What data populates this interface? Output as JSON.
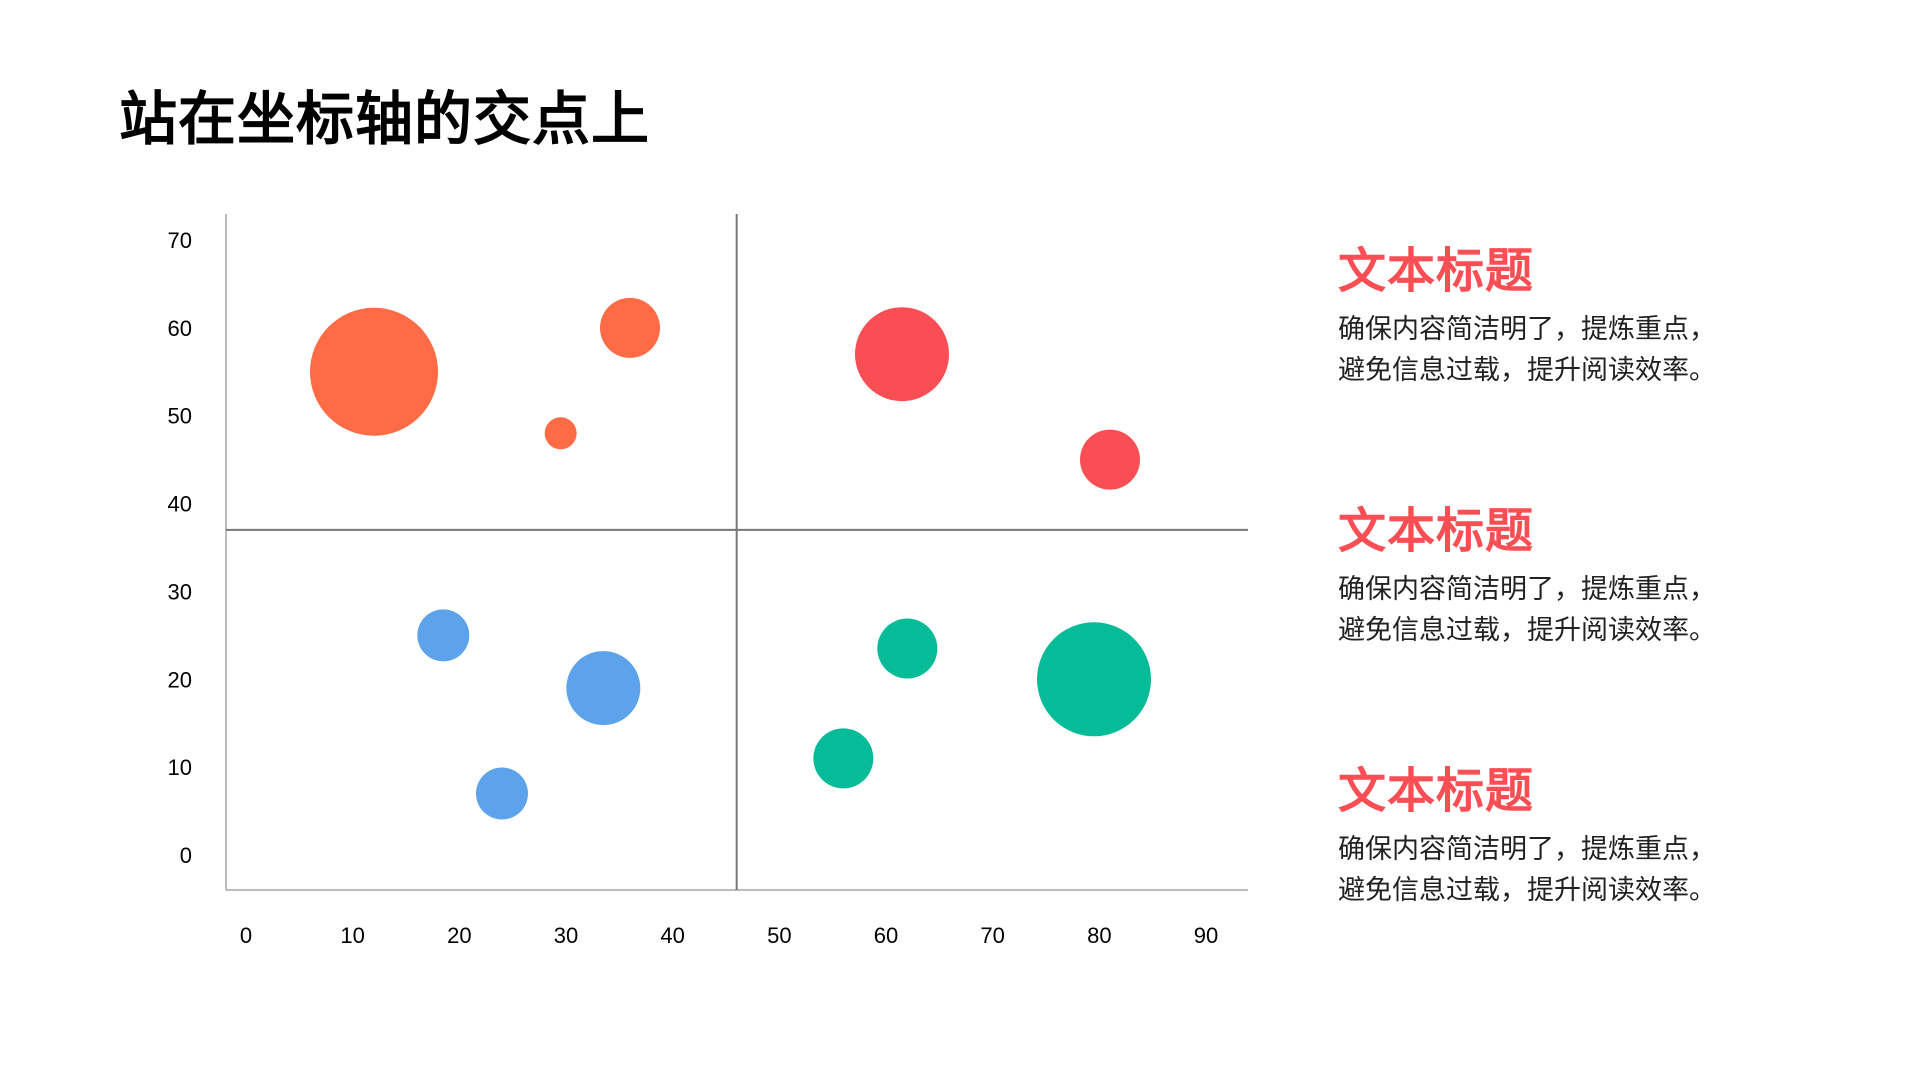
{
  "page": {
    "title": "站在坐标轴的交点上"
  },
  "chart_data": {
    "type": "scatter",
    "subtype": "bubble",
    "title": "",
    "xlabel": "",
    "ylabel": "",
    "xlim": [
      0,
      90
    ],
    "ylim": [
      0,
      70
    ],
    "x_ticks": [
      0,
      10,
      20,
      30,
      40,
      50,
      60,
      70,
      80,
      90
    ],
    "y_ticks": [
      0,
      10,
      20,
      30,
      40,
      50,
      60,
      70
    ],
    "grid": false,
    "legend": "none",
    "quadrant_divider": {
      "x": 46,
      "y": 37
    },
    "series": [
      {
        "color": "#FF6B45",
        "points": [
          {
            "x": 12,
            "y": 55,
            "size": 64
          },
          {
            "x": 36,
            "y": 60,
            "size": 30
          },
          {
            "x": 29.5,
            "y": 48,
            "size": 16
          }
        ]
      },
      {
        "color": "#F94E53",
        "points": [
          {
            "x": 61.5,
            "y": 57,
            "size": 47
          },
          {
            "x": 81,
            "y": 45,
            "size": 30
          }
        ]
      },
      {
        "color": "#5CA3EB",
        "points": [
          {
            "x": 18.5,
            "y": 25,
            "size": 26
          },
          {
            "x": 33.5,
            "y": 19,
            "size": 37
          },
          {
            "x": 24,
            "y": 7,
            "size": 26
          }
        ]
      },
      {
        "color": "#06BB97",
        "points": [
          {
            "x": 62,
            "y": 23.5,
            "size": 30
          },
          {
            "x": 79.5,
            "y": 20,
            "size": 57
          },
          {
            "x": 56,
            "y": 11,
            "size": 30
          }
        ]
      }
    ]
  },
  "sidebar": {
    "blocks": [
      {
        "heading": "文本标题",
        "line1": "确保内容简洁明了，提炼重点，",
        "line2": "避免信息过载，提升阅读效率。"
      },
      {
        "heading": "文本标题",
        "line1": "确保内容简洁明了，提炼重点，",
        "line2": "避免信息过载，提升阅读效率。"
      },
      {
        "heading": "文本标题",
        "line1": "确保内容简洁明了，提炼重点，",
        "line2": "避免信息过载，提升阅读效率。"
      }
    ]
  },
  "colors": {
    "accent": "#F94E53",
    "axis": "#BBBBBB",
    "divider": "#777777"
  }
}
